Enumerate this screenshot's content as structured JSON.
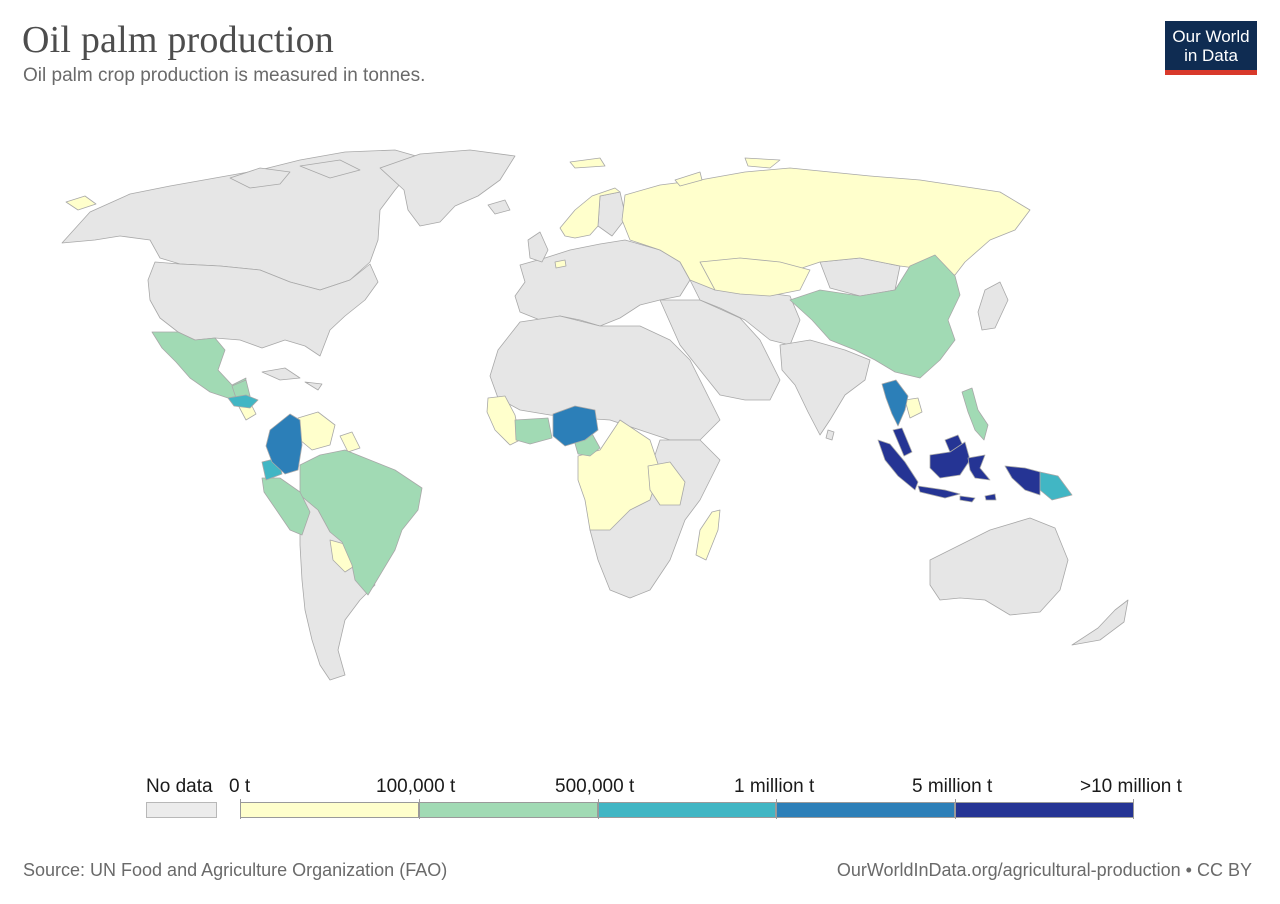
{
  "title": "Oil palm production",
  "subtitle": "Oil palm crop production is measured in tonnes.",
  "logo": {
    "line1": "Our World",
    "line2": "in Data"
  },
  "legend": {
    "no_data_label": "No data",
    "bins": [
      {
        "label": "0 t",
        "color": "#ffffcc"
      },
      {
        "label": "100,000 t",
        "color": "#a1dab4"
      },
      {
        "label": "500,000 t",
        "color": "#41b6c4"
      },
      {
        "label": "1 million t",
        "color": "#2c7fb8"
      },
      {
        "label": "5 million t",
        "color": "#253494"
      }
    ],
    "max_label": ">10 million t",
    "no_data_color": "#ececec"
  },
  "colors": {
    "no_data": "#e6e6e6",
    "border": "#a8a8a8",
    "tier1": "#ffffcc",
    "tier2": "#a1dab4",
    "tier3": "#41b6c4",
    "tier4": "#2c7fb8",
    "tier5": "#253494"
  },
  "footer": {
    "source": "Source: UN Food and Agriculture Organization (FAO)",
    "link": "OurWorldInData.org/agricultural-production • CC BY"
  }
}
